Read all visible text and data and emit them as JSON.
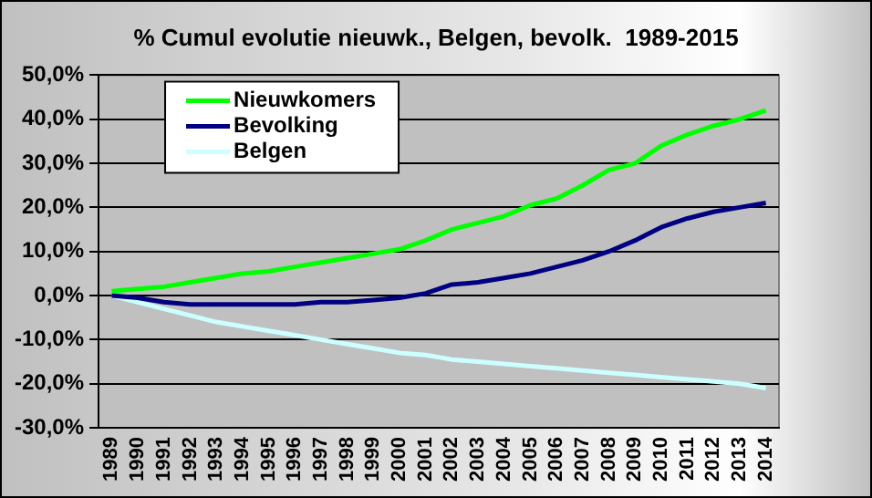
{
  "chart_data": {
    "type": "line",
    "title": "% Cumul evolutie nieuwk., Belgen, bevolk.  1989-2015",
    "categories": [
      "1989",
      "1990",
      "1991",
      "1992",
      "1993",
      "1994",
      "1995",
      "1996",
      "1997",
      "1998",
      "1999",
      "2000",
      "2001",
      "2002",
      "2003",
      "2004",
      "2005",
      "2006",
      "2007",
      "2008",
      "2009",
      "2010",
      "2011",
      "2012",
      "2013",
      "2014"
    ],
    "series": [
      {
        "name": "Nieuwkomers",
        "color": "#00ff00",
        "values": [
          1,
          1.5,
          2,
          3,
          4,
          5,
          5.5,
          6.5,
          7.5,
          8.5,
          9.5,
          10.5,
          12.5,
          15,
          16.5,
          18,
          20.5,
          22,
          25,
          28.5,
          30,
          34,
          36.5,
          38.5,
          40,
          42
        ]
      },
      {
        "name": "Bevolking",
        "color": "#000080",
        "values": [
          0,
          -0.5,
          -1.5,
          -2,
          -2,
          -2,
          -2,
          -2,
          -1.5,
          -1.5,
          -1,
          -0.5,
          0.5,
          2.5,
          3,
          4,
          5,
          6.5,
          8,
          10,
          12.5,
          15.5,
          17.5,
          19,
          20,
          21
        ]
      },
      {
        "name": "Belgen",
        "color": "#ccffff",
        "values": [
          0,
          -1.5,
          -3,
          -4.5,
          -6,
          -7,
          -8,
          -9,
          -10,
          -11,
          -12,
          -13,
          -13.5,
          -14.5,
          -15,
          -15.5,
          -16,
          -16.5,
          -17,
          -17.5,
          -18,
          -18.5,
          -19,
          -19.5,
          -20,
          -21
        ]
      }
    ],
    "ylim": [
      -30,
      50
    ],
    "yticks": [
      {
        "value": -30,
        "label": "-30,0%"
      },
      {
        "value": -20,
        "label": "-20,0%"
      },
      {
        "value": -10,
        "label": "-10,0%"
      },
      {
        "value": 0,
        "label": "0,0%"
      },
      {
        "value": 10,
        "label": "10,0%"
      },
      {
        "value": 20,
        "label": "20,0%"
      },
      {
        "value": 30,
        "label": "30,0%"
      },
      {
        "value": 40,
        "label": "40,0%"
      },
      {
        "value": 50,
        "label": "50,0%"
      }
    ],
    "grid": "y",
    "legend": "top left",
    "marker": "none",
    "line_style": "solid"
  }
}
